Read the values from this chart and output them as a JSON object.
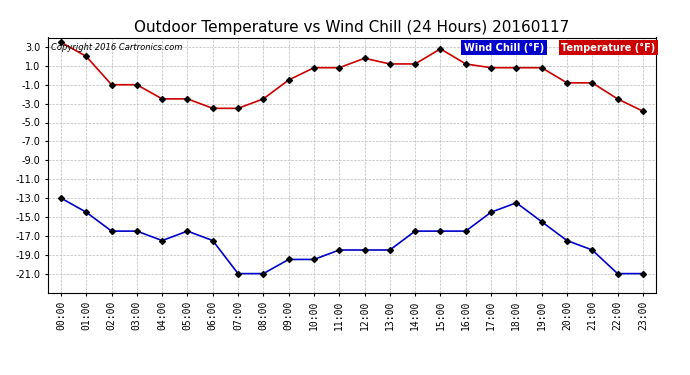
{
  "title": "Outdoor Temperature vs Wind Chill (24 Hours) 20160117",
  "copyright": "Copyright 2016 Cartronics.com",
  "x_labels": [
    "00:00",
    "01:00",
    "02:00",
    "03:00",
    "04:00",
    "05:00",
    "06:00",
    "07:00",
    "08:00",
    "09:00",
    "10:00",
    "11:00",
    "12:00",
    "13:00",
    "14:00",
    "15:00",
    "16:00",
    "17:00",
    "18:00",
    "19:00",
    "20:00",
    "21:00",
    "22:00",
    "23:00"
  ],
  "temperature": [
    3.5,
    2.0,
    -1.0,
    -1.0,
    -2.5,
    -2.5,
    -3.5,
    -3.5,
    -2.5,
    -0.5,
    0.8,
    0.8,
    1.8,
    1.2,
    1.2,
    2.8,
    1.2,
    0.8,
    0.8,
    0.8,
    -0.8,
    -0.8,
    -2.5,
    -3.8
  ],
  "wind_chill": [
    -13.0,
    -14.5,
    -16.5,
    -16.5,
    -17.5,
    -16.5,
    -17.5,
    -21.0,
    -21.0,
    -19.5,
    -19.5,
    -18.5,
    -18.5,
    -18.5,
    -16.5,
    -16.5,
    -16.5,
    -14.5,
    -13.5,
    -15.5,
    -17.5,
    -18.5,
    -21.0,
    -21.0
  ],
  "temp_color": "#cc0000",
  "wind_chill_color": "#0000cc",
  "ylim_min": -23.0,
  "ylim_max": 4.0,
  "yticks": [
    3.0,
    1.0,
    -1.0,
    -3.0,
    -5.0,
    -7.0,
    -9.0,
    -11.0,
    -13.0,
    -15.0,
    -17.0,
    -19.0,
    -21.0
  ],
  "background_color": "#ffffff",
  "plot_bg_color": "#ffffff",
  "grid_color": "#bbbbbb",
  "legend_wind_bg": "#0000cc",
  "legend_temp_bg": "#cc0000",
  "legend_text_color": "#ffffff",
  "title_fontsize": 11,
  "marker": "D",
  "marker_size": 3,
  "line_width": 1.2
}
